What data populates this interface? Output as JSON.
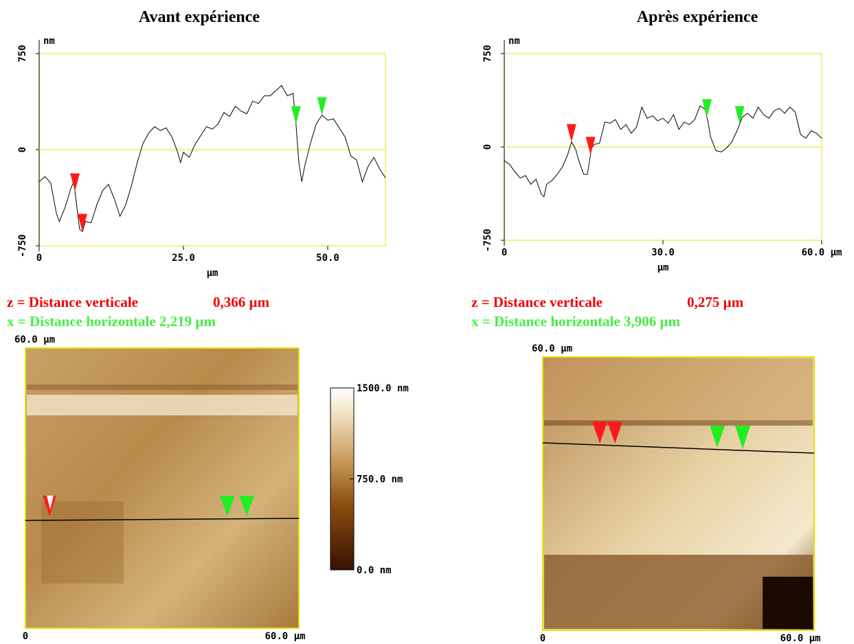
{
  "chart_data": [
    {
      "type": "line",
      "title": "Avant expérience",
      "y_unit": "nm",
      "xlabel": "µm",
      "x": [
        0,
        1,
        2,
        3,
        3.5,
        4.5,
        5.5,
        6,
        7,
        7.5,
        8,
        9,
        10,
        11,
        12,
        13,
        14,
        15,
        16,
        17,
        18,
        19,
        20,
        21,
        22,
        23,
        24,
        24.5,
        25,
        26,
        27,
        28,
        29,
        30,
        31,
        32,
        33,
        34,
        35,
        36,
        37,
        38,
        39,
        40,
        41,
        42,
        43,
        44,
        44.5,
        45,
        45.5,
        46,
        47,
        48,
        49,
        50,
        51,
        52,
        53,
        54,
        55,
        56,
        57,
        58,
        59,
        60
      ],
      "values": [
        -250,
        -210,
        -260,
        -500,
        -560,
        -450,
        -300,
        -250,
        -620,
        -640,
        -560,
        -570,
        -430,
        -320,
        -270,
        -380,
        -520,
        -430,
        -280,
        -100,
        50,
        130,
        180,
        150,
        170,
        100,
        -20,
        -100,
        -20,
        -60,
        40,
        110,
        180,
        160,
        200,
        290,
        260,
        340,
        300,
        280,
        380,
        360,
        420,
        420,
        460,
        500,
        420,
        440,
        200,
        -100,
        -250,
        -130,
        50,
        200,
        270,
        230,
        240,
        170,
        100,
        -50,
        -80,
        -250,
        -130,
        -60,
        -150,
        -220
      ],
      "color": "#000000",
      "xlim": [
        0,
        60
      ],
      "ylim": [
        -750,
        750
      ],
      "xticks": [
        0,
        {
          "value": 25,
          "label": "25.0"
        },
        {
          "value": 50,
          "label": "50.0"
        }
      ],
      "yticks": [
        -750,
        0,
        750
      ],
      "cursors": [
        6.2,
        7.5,
        44.5,
        49
      ],
      "cursor_colors": [
        "#ff1a1a",
        "#ff1a1a",
        "#22ee22",
        "#22ee22"
      ],
      "annotations": [
        {
          "text": "z = Distance verticale",
          "value": "0,366 µm",
          "color": "#ee0000"
        },
        {
          "text": "x = Distance horizontale 2,219 µm",
          "color": "#44ee44"
        }
      ]
    },
    {
      "type": "line",
      "title": "Après expérience",
      "y_unit": "nm",
      "xlabel": "µm",
      "x": [
        0,
        1,
        2,
        3,
        4,
        5,
        6,
        7,
        7.5,
        8,
        9,
        10,
        11,
        12,
        12.7,
        13.5,
        14,
        15,
        15.7,
        16.5,
        17,
        18,
        19,
        20,
        21,
        22,
        23,
        24,
        25,
        26,
        27,
        28,
        29,
        30,
        31,
        32,
        33,
        34,
        35,
        36,
        37,
        38,
        38.5,
        39,
        40,
        41,
        42,
        43,
        44,
        45,
        46,
        47,
        48,
        49,
        50,
        51,
        52,
        53,
        54,
        55,
        56,
        57,
        58,
        59,
        60
      ],
      "values": [
        -110,
        -140,
        -200,
        -250,
        -230,
        -300,
        -260,
        -380,
        -400,
        -300,
        -270,
        -220,
        -160,
        -60,
        40,
        -20,
        -100,
        -220,
        -220,
        -10,
        20,
        30,
        200,
        190,
        220,
        140,
        180,
        110,
        160,
        320,
        230,
        250,
        210,
        230,
        190,
        260,
        140,
        200,
        180,
        220,
        330,
        300,
        200,
        80,
        -30,
        -40,
        -10,
        40,
        130,
        240,
        270,
        230,
        320,
        260,
        230,
        290,
        310,
        270,
        320,
        280,
        100,
        70,
        130,
        110,
        70
      ],
      "color": "#000000",
      "xlim": [
        0,
        60
      ],
      "ylim": [
        -750,
        750
      ],
      "xticks": [
        0,
        {
          "value": 30,
          "label": "30.0"
        },
        {
          "value": 60,
          "label": "60.0 µm"
        }
      ],
      "yticks": [
        -750,
        0,
        750
      ],
      "cursors": [
        12.7,
        16.3,
        38.3,
        44.5
      ],
      "cursor_colors": [
        "#ff1a1a",
        "#ff1a1a",
        "#22ee22",
        "#22ee22"
      ],
      "annotations": [
        {
          "text": "z = Distance verticale",
          "value": "0,275 µm",
          "color": "#ee0000"
        },
        {
          "text": "x = Distance horizontale 3,906 µm",
          "color": "#44ee44"
        }
      ]
    },
    {
      "type": "image",
      "y_label": "60.0 µm",
      "x_labels": [
        "0",
        "60.0 µm"
      ],
      "colorbar": {
        "lim": [
          0,
          1500
        ],
        "ticks": [
          {
            "value": 0,
            "label": "0.0 nm"
          },
          {
            "value": 750,
            "label": "750.0 nm"
          },
          {
            "value": 1500,
            "label": "1500.0 nm"
          }
        ]
      }
    },
    {
      "type": "image",
      "y_label": "60.0 µm",
      "x_labels": [
        "0",
        "60.0 µm"
      ]
    }
  ]
}
